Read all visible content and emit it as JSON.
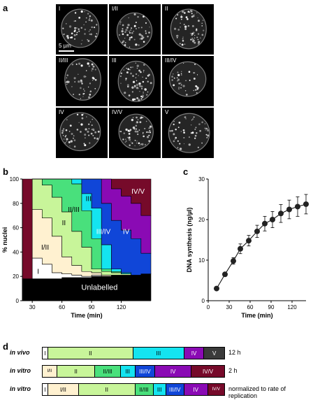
{
  "panels": {
    "a": "a",
    "b": "b",
    "c": "c",
    "d": "d"
  },
  "micrographs": {
    "stages": [
      "I",
      "I/II",
      "II",
      "II/III",
      "III",
      "III/IV",
      "IV",
      "IV/V",
      "V"
    ],
    "scale_label": "5 µm"
  },
  "colors": {
    "I": "#ffffff",
    "I/II": "#fff1d0",
    "II": "#c8f59a",
    "II/III": "#49e07c",
    "III": "#14e4f0",
    "III/IV": "#1046d8",
    "IV": "#8a0ab4",
    "IV/V": "#760a2a",
    "V": "#3a3a3a",
    "Unlabelled": "#000000"
  },
  "chart_b": {
    "type": "area",
    "xlabel": "Time (min)",
    "ylabel": "% nuclei",
    "xlim": [
      20,
      150
    ],
    "ylim": [
      0,
      100
    ],
    "xticks": [
      30,
      60,
      90,
      120
    ],
    "yticks": [
      0,
      20,
      40,
      60,
      80,
      100
    ],
    "stage_labels": [
      "I",
      "I/II",
      "II",
      "II/III",
      "III",
      "III/IV",
      "IV",
      "IV/V",
      "Unlabelled"
    ],
    "x": [
      20,
      30,
      40,
      50,
      60,
      70,
      80,
      90,
      100,
      110,
      120,
      130,
      140,
      150
    ],
    "series": [
      {
        "name": "Unlabelled",
        "values": [
          18,
          18,
          18,
          18,
          19,
          19,
          19,
          20,
          20,
          21,
          21,
          21,
          22,
          22
        ]
      },
      {
        "name": "I",
        "values": [
          0,
          17,
          12,
          5,
          3,
          2,
          1,
          1,
          0,
          0,
          0,
          0,
          0,
          0
        ]
      },
      {
        "name": "I/II",
        "values": [
          0,
          40,
          38,
          30,
          14,
          8,
          4,
          2,
          1,
          0,
          0,
          0,
          0,
          0
        ]
      },
      {
        "name": "II",
        "values": [
          0,
          25,
          27,
          32,
          37,
          28,
          20,
          3,
          3,
          2,
          1,
          0,
          0,
          0
        ]
      },
      {
        "name": "II/III",
        "values": [
          0,
          0,
          5,
          15,
          27,
          39,
          30,
          25,
          2,
          1,
          0,
          0,
          0,
          0
        ]
      },
      {
        "name": "III",
        "values": [
          0,
          0,
          0,
          0,
          0,
          4,
          14,
          25,
          20,
          2,
          1,
          0,
          0,
          0
        ]
      },
      {
        "name": "III/IV",
        "values": [
          0,
          0,
          0,
          0,
          0,
          0,
          12,
          24,
          34,
          40,
          35,
          30,
          17,
          17
        ]
      },
      {
        "name": "IV",
        "values": [
          0,
          0,
          0,
          0,
          0,
          0,
          0,
          0,
          20,
          26,
          28,
          29,
          31,
          31
        ]
      },
      {
        "name": "IV/V",
        "values": [
          0,
          0,
          0,
          0,
          0,
          0,
          0,
          0,
          0,
          10,
          15,
          20,
          30,
          30
        ]
      }
    ]
  },
  "chart_c": {
    "type": "scatter",
    "xlabel": "Time (min)",
    "ylabel": "DNA synthesis (ng/µl)",
    "xlim": [
      0,
      140
    ],
    "ylim": [
      0,
      30
    ],
    "xticks": [
      0,
      30,
      60,
      90,
      120
    ],
    "yticks": [
      0,
      10,
      20,
      30
    ],
    "x": [
      12,
      24,
      36,
      46,
      58,
      70,
      81,
      92,
      104,
      116,
      128,
      140
    ],
    "y": [
      3,
      6.5,
      9.8,
      12.8,
      14.8,
      17.1,
      19,
      20,
      21.5,
      22.5,
      23.2,
      23.8
    ],
    "err": [
      0,
      0.5,
      0.8,
      1.2,
      1.3,
      1.5,
      1.8,
      2.0,
      2.2,
      2.3,
      2.4,
      2.4
    ]
  },
  "chart_d": {
    "type": "bar",
    "rows": [
      {
        "label": "in vivo",
        "note": "12 h",
        "segments": [
          {
            "stage": "I",
            "text": "I",
            "frac": 0.03
          },
          {
            "stage": "II",
            "text": "II",
            "frac": 0.47
          },
          {
            "stage": "III",
            "text": "III",
            "frac": 0.28
          },
          {
            "stage": "IV",
            "text": "IV",
            "frac": 0.11
          },
          {
            "stage": "V",
            "text": "V",
            "frac": 0.11
          }
        ]
      },
      {
        "label": "in vitro",
        "note": "2 h",
        "segments": [
          {
            "stage": "I/II",
            "text": "I/II",
            "frac": 0.08
          },
          {
            "stage": "II",
            "text": "II",
            "frac": 0.21
          },
          {
            "stage": "II/III",
            "text": "II/III",
            "frac": 0.14
          },
          {
            "stage": "III",
            "text": "III",
            "frac": 0.08
          },
          {
            "stage": "III/IV",
            "text": "III/IV",
            "frac": 0.11
          },
          {
            "stage": "IV",
            "text": "IV",
            "frac": 0.2
          },
          {
            "stage": "IV/V",
            "text": "IV/V",
            "frac": 0.18
          }
        ]
      },
      {
        "label": "in vitro",
        "note": "normalized to rate of replication",
        "segments": [
          {
            "stage": "I",
            "text": "I",
            "frac": 0.03
          },
          {
            "stage": "I/II",
            "text": "I/II",
            "frac": 0.17
          },
          {
            "stage": "II",
            "text": "II",
            "frac": 0.31
          },
          {
            "stage": "II/III",
            "text": "II/III",
            "frac": 0.1
          },
          {
            "stage": "III",
            "text": "III",
            "frac": 0.07
          },
          {
            "stage": "III/IV",
            "text": "III/IV",
            "frac": 0.1
          },
          {
            "stage": "IV",
            "text": "IV",
            "frac": 0.13
          },
          {
            "stage": "IV/V",
            "text": "IV/V",
            "frac": 0.09
          }
        ]
      }
    ]
  }
}
